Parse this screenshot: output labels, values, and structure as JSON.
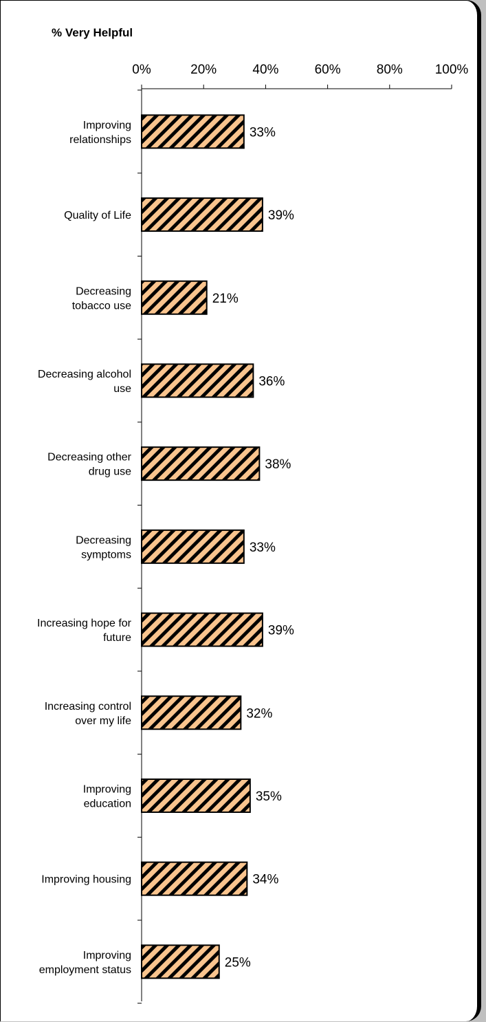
{
  "chart_data": {
    "type": "bar",
    "orientation": "horizontal",
    "title": "% Very Helpful",
    "xlabel": "",
    "ylabel": "",
    "xlim": [
      0,
      100
    ],
    "x_ticks": [
      "0%",
      "20%",
      "40%",
      "60%",
      "80%",
      "100%"
    ],
    "categories": [
      [
        "Improving",
        "relationships"
      ],
      [
        "Quality of Life"
      ],
      [
        "Decreasing",
        "tobacco use"
      ],
      [
        "Decreasing alcohol",
        "use"
      ],
      [
        "Decreasing other",
        "drug use"
      ],
      [
        "Decreasing",
        "symptoms"
      ],
      [
        "Increasing hope for",
        "future"
      ],
      [
        "Increasing control",
        "over my life"
      ],
      [
        "Improving",
        "education"
      ],
      [
        "Improving housing"
      ],
      [
        "Improving",
        "employment status"
      ]
    ],
    "values": [
      33,
      39,
      21,
      36,
      38,
      33,
      39,
      32,
      35,
      34,
      25
    ],
    "data_labels": [
      "33%",
      "39%",
      "21%",
      "36%",
      "38%",
      "33%",
      "39%",
      "32%",
      "35%",
      "34%",
      "25%"
    ],
    "grid": false,
    "legend": "none",
    "colors": {
      "bar_fill": "#f9c48e",
      "bar_hatch": "#000000",
      "bar_border": "#000000",
      "axis": "#000000",
      "frame_background": "#ffffff",
      "page_background": "#c0c0c0"
    }
  }
}
